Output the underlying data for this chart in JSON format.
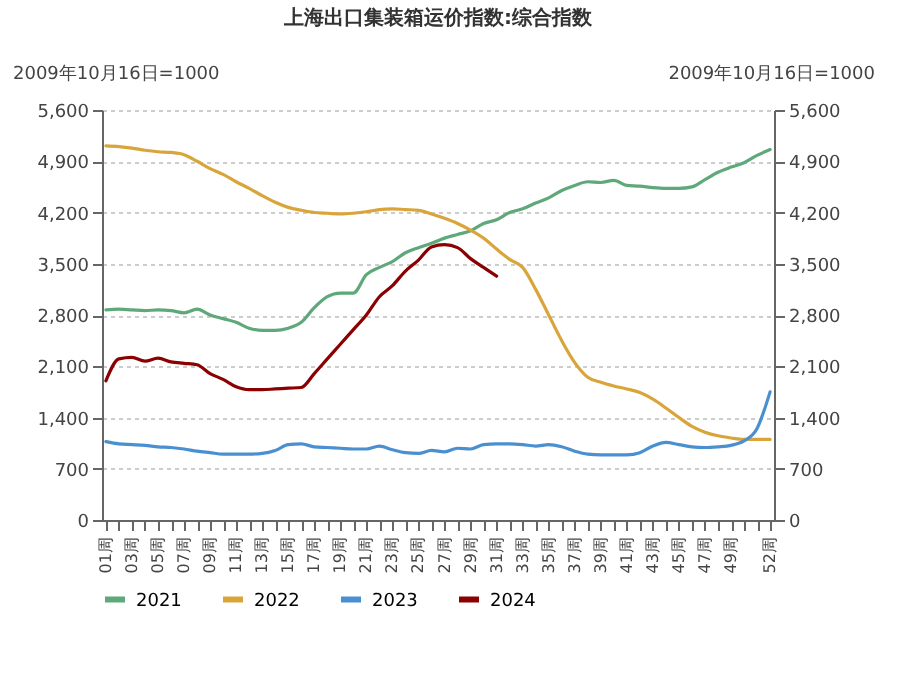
{
  "chart_data": {
    "type": "line",
    "title": "上海出口集装箱运价指数:综合指数",
    "ylabel": "2009年10月16日=1000",
    "y2label": "2009年10月16日=1000",
    "categories": [
      "01周",
      null,
      "03周",
      null,
      "05周",
      null,
      "07周",
      null,
      "09周",
      null,
      "11周",
      null,
      "13周",
      null,
      "15周",
      null,
      "17周",
      null,
      "19周",
      null,
      "21周",
      null,
      "23周",
      null,
      "25周",
      null,
      "27周",
      null,
      "29周",
      null,
      "31周",
      null,
      "33周",
      null,
      "35周",
      null,
      "37周",
      null,
      "39周",
      null,
      "41周",
      null,
      "43周",
      null,
      "45周",
      null,
      "47周",
      null,
      "49周",
      null,
      null,
      "52周"
    ],
    "series": [
      {
        "name": "2021",
        "color": "#5ea87a",
        "values": [
          2870,
          2880,
          2870,
          2860,
          2870,
          2860,
          2830,
          2880,
          2800,
          2750,
          2700,
          2620,
          2590,
          2590,
          2620,
          2700,
          2900,
          3050,
          3100,
          3100,
          3350,
          3450,
          3530,
          3650,
          3720,
          3780,
          3850,
          3900,
          3950,
          4050,
          4100,
          4200,
          4250,
          4330,
          4400,
          4500,
          4570,
          4620,
          4610,
          4640,
          4570,
          4560,
          4540,
          4530,
          4530,
          4550,
          4650,
          4750,
          4820,
          4880,
          4980,
          5060
        ]
      },
      {
        "name": "2022",
        "color": "#d9a53b",
        "values": [
          5110,
          5100,
          5080,
          5050,
          5030,
          5020,
          4990,
          4900,
          4800,
          4720,
          4620,
          4530,
          4430,
          4340,
          4270,
          4230,
          4200,
          4190,
          4180,
          4190,
          4210,
          4240,
          4250,
          4240,
          4230,
          4180,
          4120,
          4050,
          3960,
          3850,
          3700,
          3560,
          3450,
          3150,
          2800,
          2450,
          2150,
          1950,
          1880,
          1830,
          1790,
          1740,
          1650,
          1530,
          1400,
          1280,
          1200,
          1150,
          1120,
          1100,
          1100,
          1100
        ]
      },
      {
        "name": "2023",
        "color": "#4a90d0",
        "values": [
          1070,
          1040,
          1030,
          1020,
          1000,
          990,
          970,
          940,
          920,
          900,
          900,
          900,
          910,
          950,
          1030,
          1040,
          1000,
          990,
          980,
          970,
          970,
          1010,
          960,
          920,
          910,
          950,
          930,
          980,
          970,
          1030,
          1040,
          1040,
          1030,
          1010,
          1030,
          1000,
          940,
          900,
          890,
          890,
          890,
          920,
          1010,
          1060,
          1030,
          1000,
          990,
          1000,
          1020,
          1080,
          1250,
          1750
        ]
      },
      {
        "name": "2024",
        "color": "#8b0000",
        "values": [
          1900,
          2200,
          2220,
          2170,
          2210,
          2160,
          2140,
          2120,
          2000,
          1920,
          1820,
          1780,
          1780,
          1790,
          1800,
          1810,
          2000,
          2200,
          2400,
          2600,
          2800,
          3050,
          3200,
          3400,
          3550,
          3730,
          3760,
          3720,
          3570,
          3450,
          3330,
          null,
          null,
          null,
          null,
          null,
          null,
          null,
          null,
          null,
          null,
          null,
          null,
          null,
          null,
          null,
          null,
          null,
          null,
          null,
          null,
          null
        ]
      }
    ],
    "ylim": [
      0,
      5600
    ],
    "yticks": [
      {
        "value": 0,
        "label": "0"
      },
      {
        "value": 700,
        "label": "700"
      },
      {
        "value": 1400,
        "label": "1,400"
      },
      {
        "value": 2100,
        "label": "2,100"
      },
      {
        "value": 2800,
        "label": "2,800"
      },
      {
        "value": 3500,
        "label": "3,500"
      },
      {
        "value": 4200,
        "label": "4,200"
      },
      {
        "value": 4900,
        "label": "4,900"
      },
      {
        "value": 5600,
        "label": "5,600"
      }
    ],
    "y2lim": [
      0,
      5600
    ],
    "y2ticks": [
      {
        "value": 0,
        "label": "0"
      },
      {
        "value": 700,
        "label": "700"
      },
      {
        "value": 1400,
        "label": "1,400"
      },
      {
        "value": 2100,
        "label": "2,100"
      },
      {
        "value": 2800,
        "label": "2,800"
      },
      {
        "value": 3500,
        "label": "3,500"
      },
      {
        "value": 4200,
        "label": "4,200"
      },
      {
        "value": 4900,
        "label": "4,900"
      },
      {
        "value": 5600,
        "label": "5,600"
      }
    ],
    "grid": "y",
    "legend": "bottom",
    "marker": "none",
    "line_style": "solid"
  }
}
